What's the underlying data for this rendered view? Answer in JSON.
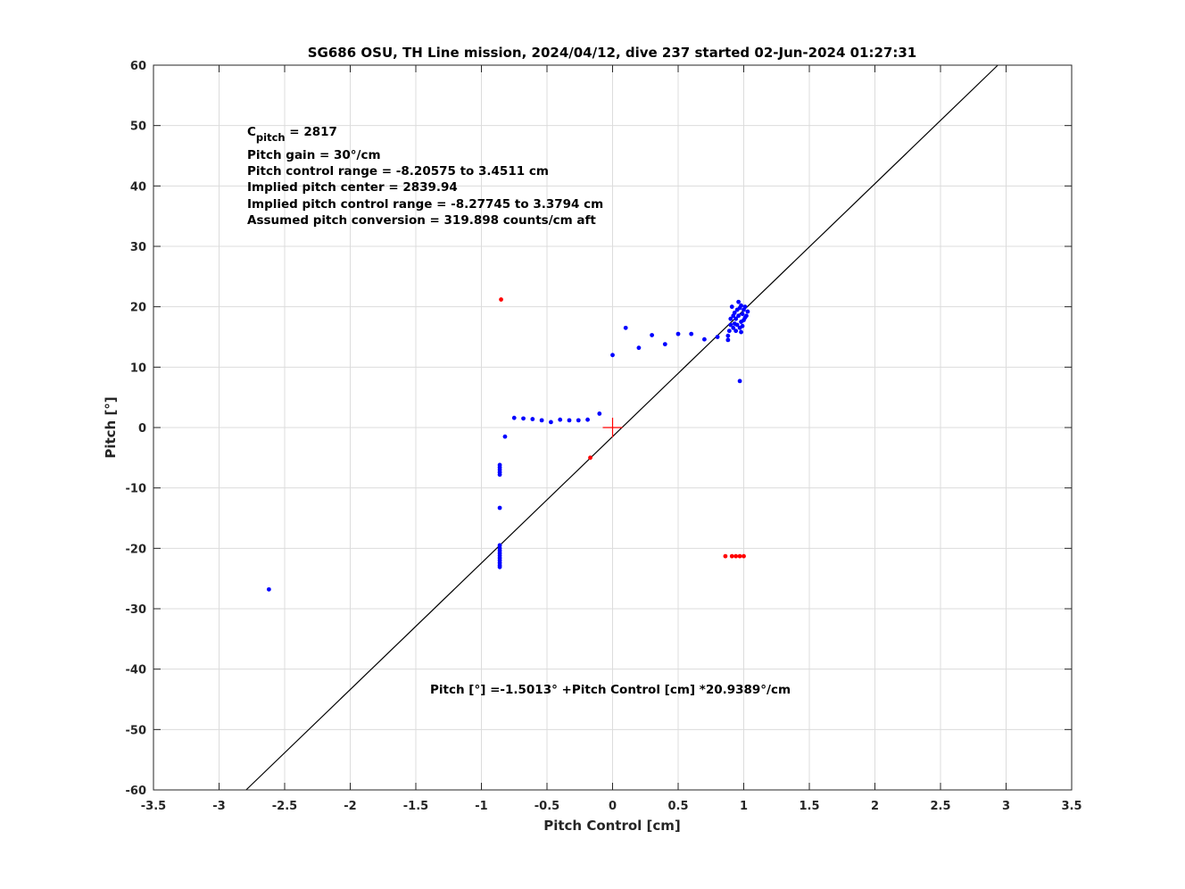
{
  "chart_data": {
    "type": "scatter",
    "title": "SG686 OSU, TH Line mission, 2024/04/12, dive 237 started 02-Jun-2024 01:27:31",
    "xlabel": "Pitch Control [cm]",
    "ylabel": "Pitch [°]",
    "xlim": [
      -3.5,
      3.5
    ],
    "ylim": [
      -60,
      60
    ],
    "xticks": [
      -3.5,
      -3,
      -2.5,
      -2,
      -1.5,
      -1,
      -0.5,
      0,
      0.5,
      1,
      1.5,
      2,
      2.5,
      3,
      3.5
    ],
    "xtick_labels": [
      "-3.5",
      "-3",
      "-2.5",
      "-2",
      "-1.5",
      "-1",
      "-0.5",
      "0",
      "0.5",
      "1",
      "1.5",
      "2",
      "2.5",
      "3",
      "3.5"
    ],
    "yticks": [
      -60,
      -50,
      -40,
      -30,
      -20,
      -10,
      0,
      10,
      20,
      30,
      40,
      50,
      60
    ],
    "ytick_labels": [
      "-60",
      "-50",
      "-40",
      "-30",
      "-20",
      "-10",
      "0",
      "10",
      "20",
      "30",
      "40",
      "50",
      "60"
    ],
    "grid": true,
    "colors": {
      "good": "#0000ff",
      "bad": "#ff0000",
      "fit": "#000000",
      "center": "#ff0000",
      "grid": "#dcdcdc"
    },
    "fit_line": {
      "intercept": -1.5013,
      "slope": 20.9389
    },
    "center_marker": {
      "x": 0,
      "y": 0
    },
    "series": [
      {
        "color": "#0000ff",
        "points": [
          [
            -2.62,
            -26.8
          ],
          [
            -0.86,
            -19.5
          ],
          [
            -0.86,
            -20.0
          ],
          [
            -0.86,
            -20.4
          ],
          [
            -0.86,
            -20.8
          ],
          [
            -0.86,
            -21.2
          ],
          [
            -0.86,
            -21.6
          ],
          [
            -0.86,
            -22.0
          ],
          [
            -0.86,
            -22.4
          ],
          [
            -0.86,
            -22.8
          ],
          [
            -0.86,
            -23.1
          ],
          [
            -0.86,
            -13.3
          ],
          [
            -0.86,
            -6.2
          ],
          [
            -0.86,
            -6.6
          ],
          [
            -0.86,
            -7.0
          ],
          [
            -0.86,
            -7.4
          ],
          [
            -0.86,
            -7.8
          ],
          [
            -0.82,
            -1.5
          ],
          [
            -0.75,
            1.6
          ],
          [
            -0.68,
            1.5
          ],
          [
            -0.61,
            1.4
          ],
          [
            -0.54,
            1.2
          ],
          [
            -0.47,
            0.9
          ],
          [
            -0.4,
            1.3
          ],
          [
            -0.33,
            1.2
          ],
          [
            -0.26,
            1.2
          ],
          [
            -0.19,
            1.3
          ],
          [
            -0.1,
            2.3
          ],
          [
            0.0,
            12.0
          ],
          [
            0.1,
            16.5
          ],
          [
            0.2,
            13.2
          ],
          [
            0.3,
            15.3
          ],
          [
            0.4,
            13.8
          ],
          [
            0.5,
            15.5
          ],
          [
            0.6,
            15.5
          ],
          [
            0.7,
            14.6
          ],
          [
            0.8,
            15.0
          ],
          [
            0.88,
            14.5
          ],
          [
            0.88,
            15.2
          ],
          [
            0.89,
            16.0
          ],
          [
            0.9,
            17.0
          ],
          [
            0.9,
            18.0
          ],
          [
            0.91,
            20.0
          ],
          [
            0.92,
            16.5
          ],
          [
            0.92,
            18.5
          ],
          [
            0.93,
            17.2
          ],
          [
            0.93,
            19.0
          ],
          [
            0.94,
            16.0
          ],
          [
            0.94,
            18.0
          ],
          [
            0.95,
            19.5
          ],
          [
            0.95,
            17.0
          ],
          [
            0.96,
            20.8
          ],
          [
            0.96,
            18.5
          ],
          [
            0.97,
            16.5
          ],
          [
            0.97,
            19.8
          ],
          [
            0.98,
            15.8
          ],
          [
            0.98,
            17.5
          ],
          [
            0.98,
            20.2
          ],
          [
            0.99,
            18.8
          ],
          [
            0.99,
            16.8
          ],
          [
            1.0,
            19.5
          ],
          [
            1.0,
            17.8
          ],
          [
            1.01,
            18.2
          ],
          [
            1.01,
            20.0
          ],
          [
            1.02,
            18.5
          ],
          [
            1.03,
            19.2
          ],
          [
            0.97,
            7.7
          ]
        ]
      },
      {
        "color": "#ff0000",
        "points": [
          [
            -0.85,
            21.2
          ],
          [
            -0.17,
            -5.0
          ],
          [
            0.86,
            -21.3
          ],
          [
            0.91,
            -21.3
          ],
          [
            0.94,
            -21.3
          ],
          [
            0.97,
            -21.3
          ],
          [
            1.0,
            -21.3
          ]
        ]
      }
    ],
    "annotations": [
      {
        "base": "C",
        "subscript": "pitch",
        "text": " = 2817"
      },
      {
        "text": "Pitch gain = 30°/cm"
      },
      {
        "text": "Pitch control range = -8.20575 to 3.4511 cm"
      },
      {
        "text": "Implied pitch center = 2839.94"
      },
      {
        "text": "Implied pitch control range = -8.27745 to 3.3794 cm"
      },
      {
        "text": "Assumed pitch conversion = 319.898 counts/cm aft"
      }
    ],
    "fit_label": "Pitch [°] =-1.5013° +Pitch Control [cm] *20.9389°/cm"
  }
}
